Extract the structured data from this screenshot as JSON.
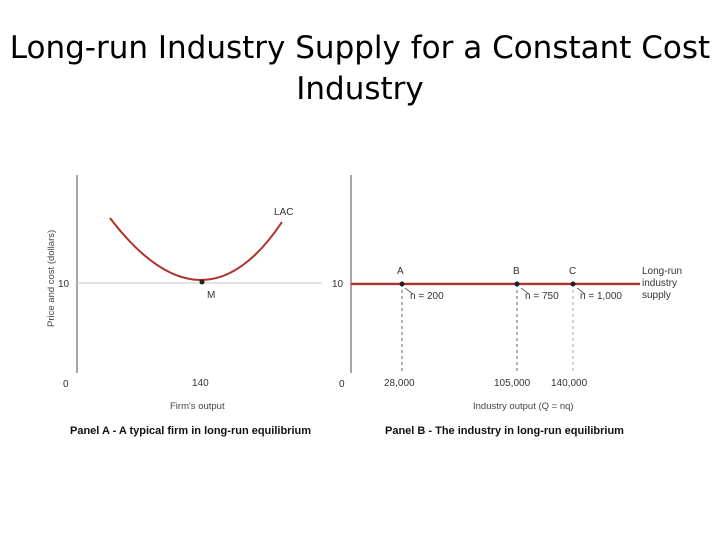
{
  "title": {
    "line1": "Long-run Industry Supply for a Constant Cost",
    "line2": "Industry"
  },
  "panel_a": {
    "ylabel": "Price and cost (dollars)",
    "xlabel": "Firm's output",
    "title": "Panel A - A typical firm in long-run equilibrium",
    "origin": "0",
    "y_tick": "10",
    "x_tick": "140",
    "curve_label": "LAC",
    "point_label": "M"
  },
  "panel_b": {
    "xlabel": "Industry output (Q = nq)",
    "title": "Panel B - The industry in long-run equilibrium",
    "origin": "0",
    "y_tick": "10",
    "x_ticks": [
      "28,000",
      "105,000",
      "140,000"
    ],
    "points": [
      {
        "label": "A",
        "n": "n = 200"
      },
      {
        "label": "B",
        "n": "n = 750"
      },
      {
        "label": "C",
        "n": "n = 1,000"
      }
    ],
    "supply_label": [
      "Long-run",
      "industry",
      "supply"
    ]
  },
  "colors": {
    "curve": "#b0302a",
    "axis": "#777777",
    "guide": "#c8c8c8",
    "dashed": "#888888"
  }
}
